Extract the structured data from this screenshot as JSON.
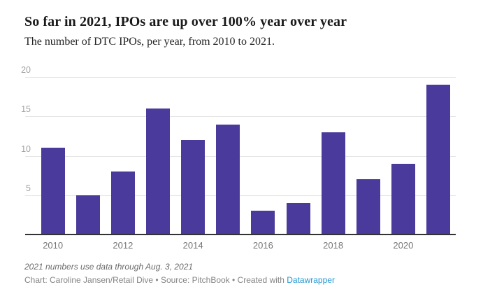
{
  "header": {
    "title": "So far in 2021, IPOs are up over 100% year over year",
    "subtitle": "The number of DTC IPOs, per year, from 2010 to 2021."
  },
  "footer": {
    "note": "2021 numbers use data through Aug. 3, 2021",
    "byline_text": "Chart: Caroline Jansen/Retail Dive • Source: PitchBook • Created with ",
    "link_label": "Datawrapper"
  },
  "colors": {
    "bar": "#4a3a9c",
    "title_text": "#1a1a1a",
    "axis_label": "#a2a2a2",
    "x_label": "#757575",
    "gridline": "#e4e4e4",
    "axis_line": "#333333",
    "link": "#2196d3",
    "background": "#ffffff"
  },
  "chart_data": {
    "type": "bar",
    "title": "So far in 2021, IPOs are up over 100% year over year",
    "subtitle": "The number of DTC IPOs, per year, from 2010 to 2021.",
    "xlabel": "",
    "ylabel": "",
    "categories": [
      "2010",
      "2011",
      "2012",
      "2013",
      "2014",
      "2015",
      "2016",
      "2017",
      "2018",
      "2019",
      "2020",
      "2021"
    ],
    "values": [
      11,
      5,
      8,
      16,
      12,
      14,
      3,
      4,
      13,
      7,
      9,
      19
    ],
    "ylim": [
      0,
      20
    ],
    "yticks": [
      5,
      10,
      15,
      20
    ],
    "xticks_shown": [
      "2010",
      "2012",
      "2014",
      "2016",
      "2018",
      "2020"
    ],
    "grid": true,
    "legend": false
  }
}
